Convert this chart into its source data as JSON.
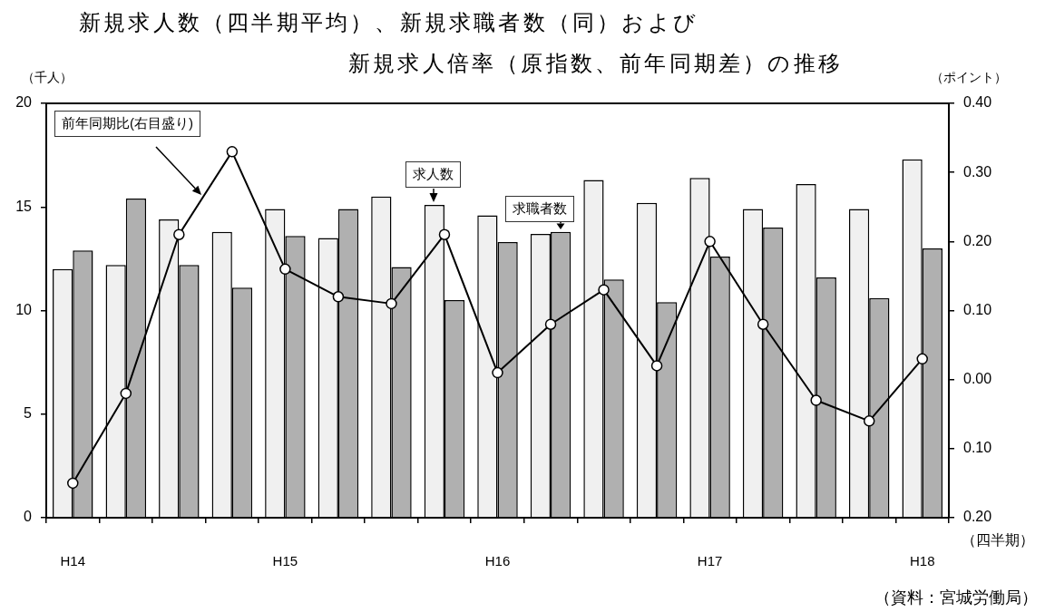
{
  "chart_data": {
    "type": "bar",
    "title": "新規求人数（四半期平均）、新規求職者数（同）および",
    "subtitle": "新規求人倍率（原指数、前年同期差）の推移",
    "xlabel": "（四半期）",
    "ylabel": "（千人）",
    "y2label": "（ポイント）",
    "annotations": [
      "（資料：宮城労働局）"
    ],
    "categories": [
      "H14",
      null,
      null,
      null,
      "H15",
      null,
      null,
      null,
      "H16",
      null,
      null,
      null,
      "H17",
      null,
      null,
      null,
      "H18"
    ],
    "series": [
      {
        "name": "求人数",
        "color": "#f0f0f0",
        "values": [
          12.0,
          12.2,
          14.4,
          13.8,
          14.9,
          13.5,
          15.5,
          15.1,
          14.6,
          13.7,
          16.3,
          15.2,
          16.4,
          14.9,
          16.1,
          14.9,
          17.3
        ]
      },
      {
        "name": "求職者数",
        "color": "#b0b0b0",
        "values": [
          12.9,
          15.4,
          12.2,
          11.1,
          13.6,
          14.9,
          12.1,
          10.5,
          13.3,
          13.8,
          11.5,
          10.4,
          12.6,
          14.0,
          11.6,
          10.6,
          13.0
        ]
      },
      {
        "name": "前年同期比(右目盛り)",
        "type": "line",
        "axis": "y2",
        "color": "#000000",
        "values": [
          -0.15,
          -0.02,
          0.21,
          0.33,
          0.16,
          0.12,
          0.11,
          0.21,
          0.01,
          0.08,
          0.13,
          0.02,
          0.2,
          0.08,
          -0.03,
          -0.06,
          0.03
        ]
      }
    ],
    "ylim": [
      0,
      20
    ],
    "yticks": [
      0,
      5,
      10,
      15,
      20
    ],
    "y2lim": [
      -0.2,
      0.4
    ],
    "y2ticks": [
      {
        "value": -0.2,
        "label": "0.20"
      },
      {
        "value": -0.1,
        "label": "0.10"
      },
      {
        "value": 0,
        "label": "0.00"
      },
      {
        "value": 0.1,
        "label": "0.10"
      },
      {
        "value": 0.2,
        "label": "0.20"
      },
      {
        "value": 0.3,
        "label": "0.30"
      },
      {
        "value": 0.4,
        "label": "0.40"
      }
    ],
    "grid": false,
    "legend": false,
    "marker": "circle",
    "line_style": "solid"
  }
}
